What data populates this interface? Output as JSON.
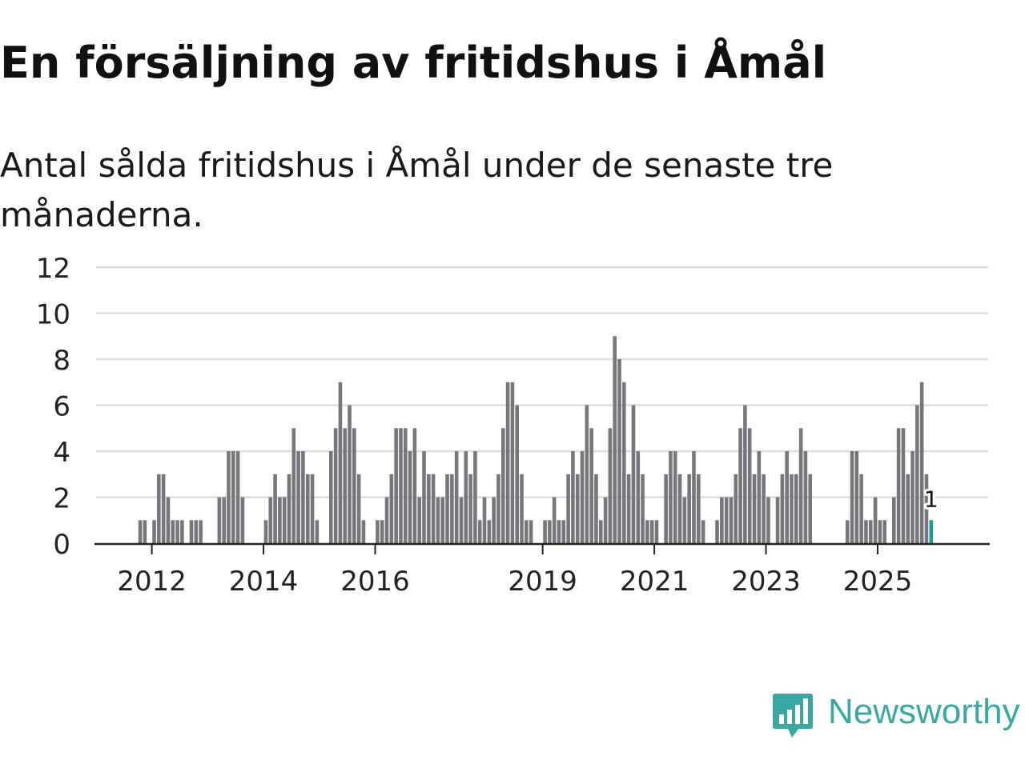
{
  "title": "En försäljning av fritidshus i Åmål",
  "subtitle": "Antal sålda fritidshus i Åmål under de senaste tre månaderna.",
  "logo": {
    "text": "Newsworthy",
    "icon": "newsworthy-chart-icon",
    "color": "#3aa7a2"
  },
  "colors": {
    "bar": "#77767c",
    "highlight": "#1f9c96",
    "grid": "#dddddd",
    "axis": "#222222",
    "text": "#222222"
  },
  "chart_data": {
    "type": "bar",
    "title": "En försäljning av fritidshus i Åmål",
    "subtitle": "Antal sålda fritidshus i Åmål under de senaste tre månaderna.",
    "xlabel": "",
    "ylabel": "",
    "ylim": [
      0,
      12
    ],
    "yticks": [
      0,
      2,
      4,
      6,
      8,
      10,
      12
    ],
    "x_start": "2011-01",
    "x_end": "2025-12",
    "xtick_labels": [
      "2012",
      "2014",
      "2016",
      "2019",
      "2021",
      "2023",
      "2025"
    ],
    "grid": "horizontal",
    "legend": "none",
    "categories": [
      "2011-01",
      "2011-02",
      "2011-03",
      "2011-04",
      "2011-05",
      "2011-06",
      "2011-07",
      "2011-08",
      "2011-09",
      "2011-10",
      "2011-11",
      "2011-12",
      "2012-01",
      "2012-02",
      "2012-03",
      "2012-04",
      "2012-05",
      "2012-06",
      "2012-07",
      "2012-08",
      "2012-09",
      "2012-10",
      "2012-11",
      "2012-12",
      "2013-01",
      "2013-02",
      "2013-03",
      "2013-04",
      "2013-05",
      "2013-06",
      "2013-07",
      "2013-08",
      "2013-09",
      "2013-10",
      "2013-11",
      "2013-12",
      "2014-01",
      "2014-02",
      "2014-03",
      "2014-04",
      "2014-05",
      "2014-06",
      "2014-07",
      "2014-08",
      "2014-09",
      "2014-10",
      "2014-11",
      "2014-12",
      "2015-01",
      "2015-02",
      "2015-03",
      "2015-04",
      "2015-05",
      "2015-06",
      "2015-07",
      "2015-08",
      "2015-09",
      "2015-10",
      "2015-11",
      "2015-12",
      "2016-01",
      "2016-02",
      "2016-03",
      "2016-04",
      "2016-05",
      "2016-06",
      "2016-07",
      "2016-08",
      "2016-09",
      "2016-10",
      "2016-11",
      "2016-12",
      "2017-01",
      "2017-02",
      "2017-03",
      "2017-04",
      "2017-05",
      "2017-06",
      "2017-07",
      "2017-08",
      "2017-09",
      "2017-10",
      "2017-11",
      "2017-12",
      "2018-01",
      "2018-02",
      "2018-03",
      "2018-04",
      "2018-05",
      "2018-06",
      "2018-07",
      "2018-08",
      "2018-09",
      "2018-10",
      "2018-11",
      "2018-12",
      "2019-01",
      "2019-02",
      "2019-03",
      "2019-04",
      "2019-05",
      "2019-06",
      "2019-07",
      "2019-08",
      "2019-09",
      "2019-10",
      "2019-11",
      "2019-12",
      "2020-01",
      "2020-02",
      "2020-03",
      "2020-04",
      "2020-05",
      "2020-06",
      "2020-07",
      "2020-08",
      "2020-09",
      "2020-10",
      "2020-11",
      "2020-12",
      "2021-01",
      "2021-02",
      "2021-03",
      "2021-04",
      "2021-05",
      "2021-06",
      "2021-07",
      "2021-08",
      "2021-09",
      "2021-10",
      "2021-11",
      "2021-12",
      "2022-01",
      "2022-02",
      "2022-03",
      "2022-04",
      "2022-05",
      "2022-06",
      "2022-07",
      "2022-08",
      "2022-09",
      "2022-10",
      "2022-11",
      "2022-12",
      "2023-01",
      "2023-02",
      "2023-03",
      "2023-04",
      "2023-05",
      "2023-06",
      "2023-07",
      "2023-08",
      "2023-09",
      "2023-10",
      "2023-11",
      "2023-12",
      "2024-01",
      "2024-02",
      "2024-03",
      "2024-04",
      "2024-05",
      "2024-06",
      "2024-07",
      "2024-08",
      "2024-09",
      "2024-10",
      "2024-11",
      "2024-12",
      "2025-01",
      "2025-02",
      "2025-03",
      "2025-04",
      "2025-05",
      "2025-06",
      "2025-07",
      "2025-08",
      "2025-09",
      "2025-10",
      "2025-11",
      "2025-12"
    ],
    "values": [
      0,
      0,
      0,
      0,
      0,
      0,
      0,
      0,
      0,
      1,
      1,
      0,
      1,
      3,
      3,
      2,
      1,
      1,
      1,
      0,
      1,
      1,
      1,
      0,
      0,
      0,
      2,
      2,
      4,
      4,
      4,
      2,
      0,
      0,
      0,
      0,
      1,
      2,
      3,
      2,
      2,
      3,
      5,
      4,
      4,
      3,
      3,
      1,
      0,
      0,
      4,
      5,
      7,
      5,
      6,
      5,
      3,
      1,
      0,
      0,
      1,
      1,
      2,
      3,
      5,
      5,
      5,
      4,
      5,
      2,
      4,
      3,
      3,
      2,
      2,
      3,
      3,
      4,
      2,
      4,
      3,
      4,
      1,
      2,
      1,
      2,
      3,
      5,
      7,
      7,
      6,
      3,
      1,
      1,
      0,
      0,
      1,
      1,
      2,
      1,
      1,
      3,
      4,
      3,
      4,
      6,
      5,
      3,
      1,
      2,
      5,
      9,
      8,
      7,
      3,
      6,
      4,
      3,
      1,
      1,
      1,
      0,
      3,
      4,
      4,
      3,
      2,
      3,
      4,
      3,
      1,
      0,
      0,
      1,
      2,
      2,
      2,
      3,
      5,
      6,
      5,
      3,
      4,
      3,
      2,
      0,
      2,
      3,
      4,
      3,
      3,
      5,
      4,
      3,
      0,
      0,
      0,
      0,
      0,
      0,
      0,
      1,
      4,
      4,
      3,
      1,
      1,
      2,
      1,
      1,
      0,
      2,
      5,
      5,
      3,
      4,
      6,
      7,
      3,
      1
    ],
    "highlight": {
      "index": 179,
      "value": 1,
      "label": "1"
    }
  }
}
